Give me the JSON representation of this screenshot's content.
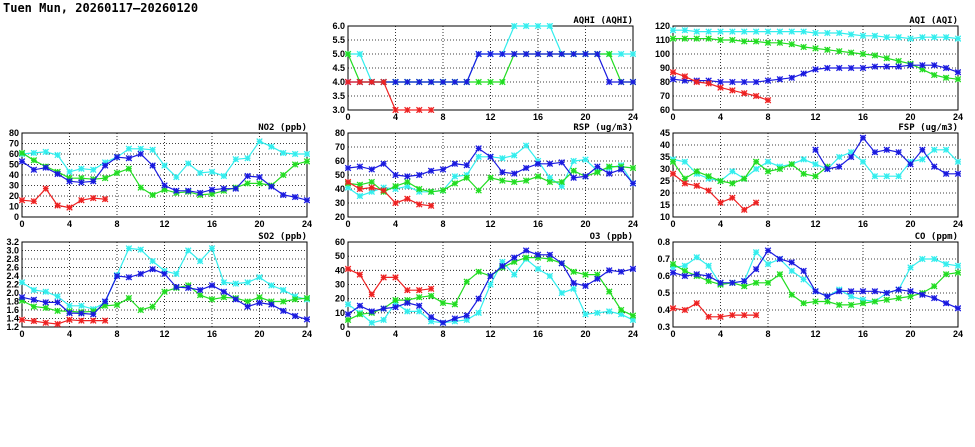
{
  "title": "Tuen Mun, 20260117–20260120",
  "series_colors": [
    "#33eeee",
    "#22dd22",
    "#1a1ae0",
    "#ee2222"
  ],
  "chart_data": [
    {
      "type": "line",
      "title": "NO2 (ppb)",
      "ylim": [
        0,
        80
      ],
      "yticks": [
        "0",
        "10",
        "20",
        "30",
        "40",
        "50",
        "60",
        "70",
        "80"
      ],
      "xlim": [
        0,
        24
      ],
      "xticks": [
        "0",
        "4",
        "8",
        "12",
        "16",
        "20",
        "24"
      ],
      "grid": true,
      "series": [
        {
          "color": "cyan",
          "values": [
            60,
            61,
            62,
            59,
            43,
            46,
            45,
            52,
            57,
            65,
            65,
            64,
            49,
            38,
            51,
            42,
            43,
            39,
            55,
            56,
            72,
            67,
            61,
            60,
            60
          ]
        },
        {
          "color": "green",
          "values": [
            61,
            54,
            48,
            43,
            37,
            37,
            36,
            37,
            42,
            46,
            28,
            21,
            26,
            23,
            24,
            21,
            22,
            25,
            28,
            32,
            32,
            30,
            40,
            50,
            53
          ]
        },
        {
          "color": "blue",
          "values": [
            53,
            45,
            47,
            41,
            34,
            33,
            34,
            49,
            57,
            56,
            60,
            49,
            30,
            25,
            25,
            23,
            26,
            27,
            27,
            39,
            38,
            29,
            21,
            19,
            16
          ]
        },
        {
          "color": "red",
          "values": [
            16,
            15,
            27,
            11,
            9,
            16,
            18,
            17
          ]
        }
      ]
    },
    {
      "type": "line",
      "title": "SO2 (ppb)",
      "ylim": [
        1.2,
        3.2
      ],
      "yticks": [
        "1.2",
        "1.4",
        "1.6",
        "1.8",
        "2.0",
        "2.2",
        "2.4",
        "2.6",
        "2.8",
        "3.0",
        "3.2"
      ],
      "xlim": [
        0,
        24
      ],
      "xticks": [
        "0",
        "4",
        "8",
        "12",
        "16",
        "20",
        "24"
      ],
      "grid": true,
      "series": [
        {
          "color": "cyan",
          "values": [
            2.25,
            2.07,
            2.03,
            1.92,
            1.7,
            1.7,
            1.62,
            1.78,
            2.42,
            3.05,
            3.02,
            2.75,
            2.52,
            2.45,
            3.0,
            2.75,
            3.05,
            2.25,
            2.22,
            2.25,
            2.37,
            2.18,
            2.07,
            1.92,
            1.85
          ]
        },
        {
          "color": "green",
          "values": [
            1.82,
            1.68,
            1.65,
            1.58,
            1.57,
            1.55,
            1.57,
            1.7,
            1.72,
            1.88,
            1.6,
            1.68,
            2.03,
            2.12,
            2.18,
            1.95,
            1.85,
            1.9,
            1.88,
            1.8,
            1.9,
            1.8,
            1.8,
            1.85,
            1.88
          ]
        },
        {
          "color": "blue",
          "values": [
            1.9,
            1.84,
            1.78,
            1.78,
            1.53,
            1.52,
            1.5,
            1.8,
            2.4,
            2.37,
            2.45,
            2.56,
            2.45,
            2.14,
            2.12,
            2.07,
            2.18,
            2.03,
            1.85,
            1.68,
            1.77,
            1.73,
            1.58,
            1.46,
            1.38
          ]
        },
        {
          "color": "red",
          "values": [
            1.37,
            1.34,
            1.3,
            1.27,
            1.37,
            1.35,
            1.35,
            1.35
          ]
        }
      ]
    },
    {
      "type": "line",
      "title": "AQHI (AQHI)",
      "ylim": [
        3,
        6
      ],
      "yticks": [
        "3.0",
        "3.5",
        "4.0",
        "4.5",
        "5.0",
        "5.5",
        "6.0"
      ],
      "xlim": [
        0,
        24
      ],
      "xticks": [
        "0",
        "4",
        "8",
        "12",
        "16",
        "20",
        "24"
      ],
      "grid": true,
      "series": [
        {
          "color": "cyan",
          "values": [
            5,
            5,
            4,
            4,
            4,
            4,
            4,
            4,
            4,
            4,
            4,
            5,
            5,
            5,
            6,
            6,
            6,
            6,
            5,
            5,
            5,
            5,
            5,
            5,
            5
          ]
        },
        {
          "color": "green",
          "values": [
            5,
            4,
            4,
            4,
            4,
            4,
            4,
            4,
            4,
            4,
            4,
            4,
            4,
            4,
            5,
            5,
            5,
            5,
            5,
            5,
            5,
            5,
            5,
            4,
            4
          ]
        },
        {
          "color": "blue",
          "values": [
            4,
            4,
            4,
            4,
            4,
            4,
            4,
            4,
            4,
            4,
            4,
            5,
            5,
            5,
            5,
            5,
            5,
            5,
            5,
            5,
            5,
            5,
            4,
            4,
            4
          ]
        },
        {
          "color": "red",
          "values": [
            4,
            4,
            4,
            4,
            3,
            3,
            3,
            3
          ]
        }
      ]
    },
    {
      "type": "line",
      "title": "RSP (ug/m3)",
      "ylim": [
        20,
        80
      ],
      "yticks": [
        "20",
        "30",
        "40",
        "50",
        "60",
        "70",
        "80"
      ],
      "xlim": [
        0,
        24
      ],
      "xticks": [
        "0",
        "4",
        "8",
        "12",
        "16",
        "20",
        "24"
      ],
      "grid": true,
      "series": [
        {
          "color": "cyan",
          "values": [
            41,
            35,
            38,
            41,
            40,
            42,
            38,
            38,
            39,
            49,
            50,
            63,
            63,
            62,
            64,
            71,
            60,
            48,
            42,
            60,
            61,
            53,
            55,
            57,
            44
          ]
        },
        {
          "color": "green",
          "values": [
            44,
            43,
            45,
            38,
            42,
            45,
            40,
            38,
            39,
            44,
            48,
            39,
            48,
            46,
            45,
            46,
            49,
            45,
            45,
            53,
            49,
            52,
            56,
            56,
            55
          ]
        },
        {
          "color": "blue",
          "values": [
            55,
            56,
            54,
            58,
            50,
            49,
            50,
            53,
            54,
            58,
            57,
            69,
            63,
            52,
            51,
            55,
            58,
            58,
            59,
            48,
            49,
            56,
            51,
            54,
            44
          ]
        },
        {
          "color": "red",
          "values": [
            45,
            40,
            41,
            39,
            30,
            33,
            29,
            28
          ]
        }
      ]
    },
    {
      "type": "line",
      "title": "O3 (ppb)",
      "ylim": [
        0,
        60
      ],
      "yticks": [
        "0",
        "10",
        "20",
        "30",
        "40",
        "50",
        "60"
      ],
      "xlim": [
        0,
        24
      ],
      "xticks": [
        "0",
        "4",
        "8",
        "12",
        "16",
        "20",
        "24"
      ],
      "grid": true,
      "series": [
        {
          "color": "cyan",
          "values": [
            16,
            10,
            3,
            5,
            17,
            11,
            11,
            4,
            3,
            4,
            5,
            10,
            30,
            46,
            37,
            48,
            41,
            36,
            24,
            27,
            9,
            10,
            11,
            9,
            5
          ]
        },
        {
          "color": "green",
          "values": [
            5,
            9,
            10,
            13,
            19,
            19,
            21,
            22,
            17,
            16,
            32,
            39,
            36,
            42,
            46,
            49,
            49,
            48,
            45,
            39,
            37,
            37,
            25,
            12,
            8
          ]
        },
        {
          "color": "blue",
          "values": [
            9,
            15,
            11,
            13,
            14,
            17,
            15,
            7,
            3,
            6,
            8,
            20,
            36,
            43,
            49,
            54,
            51,
            51,
            45,
            31,
            29,
            34,
            40,
            39,
            41
          ]
        },
        {
          "color": "red",
          "values": [
            41,
            37,
            23,
            35,
            35,
            26,
            26,
            27
          ]
        }
      ]
    },
    {
      "type": "line",
      "title": "AQI (AQI)",
      "ylim": [
        60,
        120
      ],
      "yticks": [
        "60",
        "70",
        "80",
        "90",
        "100",
        "110",
        "120"
      ],
      "xlim": [
        0,
        24
      ],
      "xticks": [
        "0",
        "4",
        "8",
        "12",
        "16",
        "20",
        "24"
      ],
      "grid": true,
      "series": [
        {
          "color": "cyan",
          "values": [
            117,
            117,
            116,
            116,
            116,
            116,
            116,
            116,
            116,
            116,
            116,
            116,
            115,
            115,
            115,
            114,
            113,
            113,
            112,
            112,
            111,
            112,
            112,
            112,
            111
          ]
        },
        {
          "color": "green",
          "values": [
            111,
            111,
            111,
            111,
            110,
            110,
            109,
            109,
            108,
            108,
            107,
            105,
            104,
            103,
            102,
            101,
            100,
            99,
            97,
            95,
            93,
            89,
            85,
            83,
            82
          ]
        },
        {
          "color": "blue",
          "values": [
            82,
            81,
            81,
            81,
            80,
            80,
            80,
            80,
            81,
            82,
            83,
            86,
            89,
            90,
            90,
            90,
            90,
            91,
            91,
            91,
            92,
            92,
            92,
            90,
            87
          ]
        },
        {
          "color": "red",
          "values": [
            87,
            84,
            80,
            79,
            76,
            74,
            72,
            70,
            67
          ]
        }
      ]
    },
    {
      "type": "line",
      "title": "FSP (ug/m3)",
      "ylim": [
        10,
        45
      ],
      "yticks": [
        "10",
        "15",
        "20",
        "25",
        "30",
        "35",
        "40",
        "45"
      ],
      "xlim": [
        0,
        24
      ],
      "xticks": [
        "0",
        "4",
        "8",
        "12",
        "16",
        "20",
        "24"
      ],
      "grid": true,
      "series": [
        {
          "color": "cyan",
          "values": [
            34,
            33,
            28,
            26,
            25,
            29,
            26,
            30,
            33,
            31,
            32,
            34,
            32,
            30,
            35,
            37,
            33,
            27,
            27,
            27,
            33,
            34,
            38,
            38,
            33
          ]
        },
        {
          "color": "green",
          "values": [
            33,
            26,
            29,
            27,
            25,
            24,
            26,
            33,
            29,
            30,
            32,
            28,
            27,
            31
          ]
        },
        {
          "color": "blue",
          "values": [
            null,
            null,
            null,
            null,
            null,
            null,
            null,
            null,
            null,
            null,
            null,
            null,
            38,
            30,
            31,
            35,
            43,
            37,
            38,
            37,
            32,
            38,
            31,
            28,
            28
          ]
        },
        {
          "color": "red",
          "values": [
            28,
            24,
            23,
            21,
            16,
            18,
            13,
            16
          ]
        }
      ]
    },
    {
      "type": "line",
      "title": "CO (ppm)",
      "ylim": [
        0.3,
        0.8
      ],
      "yticks": [
        "0.3",
        "0.4",
        "0.5",
        "0.6",
        "0.7",
        "0.8"
      ],
      "xlim": [
        0,
        24
      ],
      "xticks": [
        "0",
        "4",
        "8",
        "12",
        "16",
        "20",
        "24"
      ],
      "grid": true,
      "series": [
        {
          "color": "cyan",
          "values": [
            0.65,
            0.66,
            0.71,
            0.66,
            0.55,
            0.56,
            0.57,
            0.74,
            0.67,
            0.7,
            0.63,
            0.58,
            0.51,
            0.48,
            0.52,
            0.48,
            0.46,
            0.45,
            0.5,
            0.52,
            0.65,
            0.7,
            0.7,
            0.67,
            0.66
          ]
        },
        {
          "color": "green",
          "values": [
            0.67,
            0.63,
            0.6,
            0.57,
            0.55,
            0.56,
            0.54,
            0.56,
            0.56,
            0.61,
            0.49,
            0.44,
            0.45,
            0.45,
            0.43,
            0.43,
            0.44,
            0.45,
            0.46,
            0.47,
            0.48,
            0.5,
            0.54,
            0.61,
            0.62
          ]
        },
        {
          "color": "blue",
          "values": [
            0.62,
            0.6,
            0.61,
            0.6,
            0.56,
            0.56,
            0.57,
            0.64,
            0.75,
            0.7,
            0.68,
            0.63,
            0.51,
            0.48,
            0.51,
            0.51,
            0.51,
            0.51,
            0.5,
            0.52,
            0.51,
            0.49,
            0.47,
            0.44,
            0.41
          ]
        },
        {
          "color": "red",
          "values": [
            0.41,
            0.4,
            0.44,
            0.36,
            0.36,
            0.37,
            0.37,
            0.37
          ]
        }
      ]
    }
  ]
}
